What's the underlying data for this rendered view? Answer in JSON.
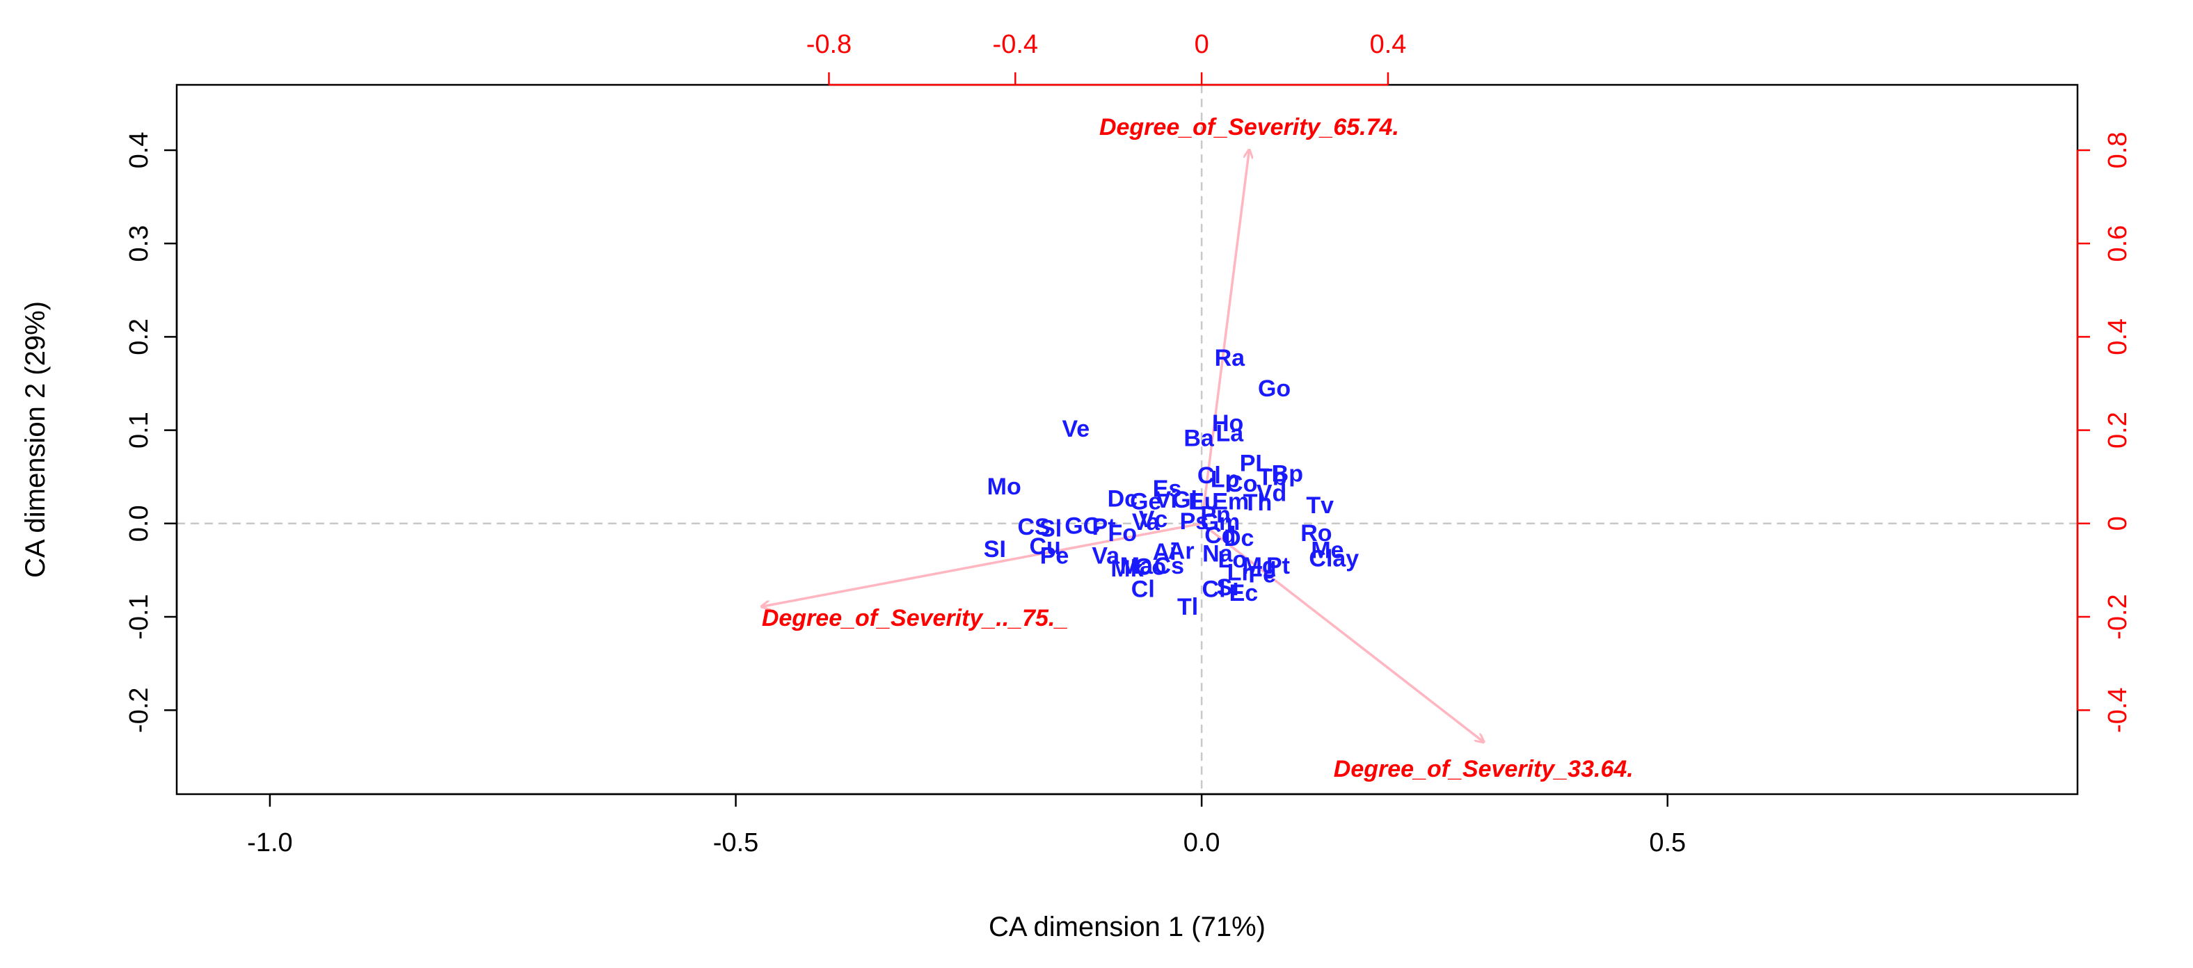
{
  "chart_data": {
    "type": "scatter",
    "xlabel": "CA dimension 1 (71%)",
    "ylabel": "CA dimension 2 (29%)",
    "xlim": [
      -1.1,
      0.94
    ],
    "ylim": [
      -0.29,
      0.47
    ],
    "x_ticks": [
      -1.0,
      -0.5,
      0.0,
      0.5
    ],
    "x_tick_labels": [
      "-1.0",
      "-0.5",
      "0.0",
      "0.5"
    ],
    "y_ticks": [
      -0.2,
      -0.1,
      0.0,
      0.1,
      0.2,
      0.3,
      0.4
    ],
    "y_tick_labels": [
      "-0.2",
      "-0.1",
      "0.0",
      "0.1",
      "0.2",
      "0.3",
      "0.4"
    ],
    "secondary_x_ticks": [
      -0.8,
      -0.4,
      0.0,
      0.4
    ],
    "secondary_x_tick_labels": [
      "-0.8",
      "-0.4",
      "0",
      "0.4"
    ],
    "secondary_y_ticks": [
      -0.4,
      -0.2,
      0.0,
      0.2,
      0.4,
      0.6,
      0.8
    ],
    "secondary_y_tick_labels": [
      "-0.4",
      "-0.2",
      "0",
      "0.2",
      "0.4",
      "0.6",
      "0.8"
    ],
    "secondary_scale": 2.0,
    "reference_lines": {
      "x": 0,
      "y": 0,
      "style": "dashed"
    },
    "grid": false,
    "colors": {
      "rows": "#1a1aff",
      "columns": "#ff0000",
      "arrows": "#ffb6c1",
      "ref_lines": "#c8c8c8"
    },
    "row_points": [
      {
        "label": "Ra",
        "x": 0.03,
        "y": 0.178
      },
      {
        "label": "Go",
        "x": 0.078,
        "y": 0.145
      },
      {
        "label": "Ho",
        "x": 0.028,
        "y": 0.108
      },
      {
        "label": "Ba",
        "x": -0.003,
        "y": 0.092
      },
      {
        "label": "La",
        "x": 0.03,
        "y": 0.097
      },
      {
        "label": "Ve",
        "x": -0.135,
        "y": 0.102
      },
      {
        "label": "PL",
        "x": 0.057,
        "y": 0.065
      },
      {
        "label": "Bp",
        "x": 0.092,
        "y": 0.054
      },
      {
        "label": "Tb",
        "x": 0.076,
        "y": 0.05
      },
      {
        "label": "Cl",
        "x": 0.008,
        "y": 0.052
      },
      {
        "label": "Lp",
        "x": 0.025,
        "y": 0.048
      },
      {
        "label": "Co",
        "x": 0.043,
        "y": 0.043
      },
      {
        "label": "Vd",
        "x": 0.075,
        "y": 0.033
      },
      {
        "label": "Tv",
        "x": 0.127,
        "y": 0.02
      },
      {
        "label": "Mo",
        "x": -0.212,
        "y": 0.04
      },
      {
        "label": "Es",
        "x": -0.037,
        "y": 0.038
      },
      {
        "label": "Dc",
        "x": -0.085,
        "y": 0.027
      },
      {
        "label": "Ge",
        "x": -0.06,
        "y": 0.024
      },
      {
        "label": "Vi",
        "x": -0.038,
        "y": 0.026
      },
      {
        "label": "Gl",
        "x": -0.018,
        "y": 0.026
      },
      {
        "label": "Eu",
        "x": 0.002,
        "y": 0.024
      },
      {
        "label": "Em",
        "x": 0.031,
        "y": 0.024
      },
      {
        "label": "Th",
        "x": 0.06,
        "y": 0.023
      },
      {
        "label": "Vc",
        "x": -0.052,
        "y": 0.005
      },
      {
        "label": "Va",
        "x": -0.06,
        "y": 0.002
      },
      {
        "label": "Ps",
        "x": -0.008,
        "y": 0.003
      },
      {
        "label": "Pn",
        "x": 0.015,
        "y": 0.01
      },
      {
        "label": "Gm",
        "x": 0.02,
        "y": 0.002
      },
      {
        "label": "CS",
        "x": -0.18,
        "y": -0.003
      },
      {
        "label": "Sl",
        "x": -0.162,
        "y": -0.005
      },
      {
        "label": "GC",
        "x": -0.128,
        "y": -0.002
      },
      {
        "label": "Pt",
        "x": -0.105,
        "y": -0.003
      },
      {
        "label": "Fo",
        "x": -0.085,
        "y": -0.01
      },
      {
        "label": "Ro",
        "x": 0.123,
        "y": -0.01
      },
      {
        "label": "Cd",
        "x": 0.02,
        "y": -0.012
      },
      {
        "label": "Dc",
        "x": 0.04,
        "y": -0.015
      },
      {
        "label": "SI",
        "x": -0.222,
        "y": -0.027
      },
      {
        "label": "Cu",
        "x": -0.168,
        "y": -0.024
      },
      {
        "label": "Pe",
        "x": -0.158,
        "y": -0.034
      },
      {
        "label": "Va",
        "x": -0.103,
        "y": -0.034
      },
      {
        "label": "Ai",
        "x": -0.04,
        "y": -0.03
      },
      {
        "label": "Ar",
        "x": -0.022,
        "y": -0.029
      },
      {
        "label": "Na",
        "x": 0.017,
        "y": -0.032
      },
      {
        "label": "Me",
        "x": 0.135,
        "y": -0.028
      },
      {
        "label": "Ma",
        "x": -0.07,
        "y": -0.045
      },
      {
        "label": "Mk",
        "x": -0.08,
        "y": -0.048
      },
      {
        "label": "Co",
        "x": -0.055,
        "y": -0.046
      },
      {
        "label": "Cs",
        "x": -0.035,
        "y": -0.045
      },
      {
        "label": "Lo",
        "x": 0.033,
        "y": -0.038
      },
      {
        "label": "Mg",
        "x": 0.062,
        "y": -0.045
      },
      {
        "label": "Pt",
        "x": 0.082,
        "y": -0.045
      },
      {
        "label": "Lr",
        "x": 0.04,
        "y": -0.052
      },
      {
        "label": "Fe",
        "x": 0.065,
        "y": -0.054
      },
      {
        "label": "Clay",
        "x": 0.142,
        "y": -0.037
      },
      {
        "label": "Cl",
        "x": -0.063,
        "y": -0.07
      },
      {
        "label": "Cl",
        "x": 0.013,
        "y": -0.07
      },
      {
        "label": "Si",
        "x": 0.028,
        "y": -0.068
      },
      {
        "label": "Ec",
        "x": 0.045,
        "y": -0.074
      },
      {
        "label": "Tl",
        "x": -0.015,
        "y": -0.089
      }
    ],
    "column_arrows": [
      {
        "label": "Degree_of_Severity_65.74.",
        "x": 0.102,
        "y": 0.8
      },
      {
        "label": "Degree_of_Severity_.._75._",
        "x": -0.944,
        "y": -0.178
      },
      {
        "label": "Degree_of_Severity_33.64.",
        "x": 0.605,
        "y": -0.468
      }
    ]
  }
}
